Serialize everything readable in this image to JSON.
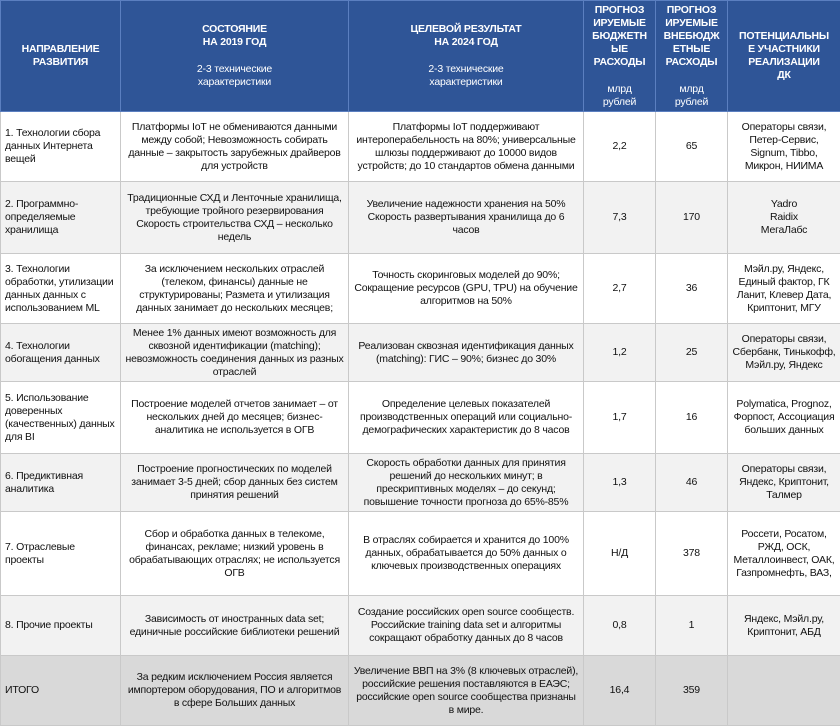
{
  "colors": {
    "header_bg": "#2f5597",
    "row_alt_bg": "#f2f2f2",
    "total_bg": "#d9d9d9"
  },
  "header": [
    {
      "title": "НАПРАВЛЕНИЕ\nРАЗВИТИЯ",
      "sub": ""
    },
    {
      "title": "СОСТОЯНИЕ\nНА 2019 ГОД",
      "sub": "2-3 технические\nхарактеристики"
    },
    {
      "title": "ЦЕЛЕВОЙ РЕЗУЛЬТАТ\nНА 2024 ГОД",
      "sub": "2-3 технические\nхарактеристики"
    },
    {
      "title": "ПРОГНОЗ\nИРУЕМЫЕ\nБЮДЖЕТН\nЫЕ\nРАСХОДЫ",
      "sub": "млрд\nрублей"
    },
    {
      "title": "ПРОГНОЗ\nИРУЕМЫЕ\nВНЕБЮДЖ\nЕТНЫЕ\nРАСХОДЫ",
      "sub": "млрд\nрублей"
    },
    {
      "title": "ПОТЕНЦИАЛЬНЫ\nЕ УЧАСТНИКИ\nРЕАЛИЗАЦИИ\nДК",
      "sub": ""
    }
  ],
  "rows": [
    {
      "direction": "1. Технологии сбора данных Интернета вещей",
      "state_2019": "Платформы IoT не обмениваются данными между собой; Невозможность собирать данные – закрытость зарубежных драйверов  для устройств",
      "target_2024": "Платформы IoT поддерживают интероперабельность на 80%; универсальные шлюзы поддерживают до 10000 видов устройств; до 10 стандартов обмена данными",
      "budget": "2,2",
      "extra_budget": "65",
      "participants": "Операторы связи, Петер-Сервис, Signum, Tibbo, Микрон, НИИМА"
    },
    {
      "direction": "2. Программно-определяемые хранилища",
      "state_2019": "Традиционные СХД и Ленточные хранилища, требующие тройного резервирования\nСкорость строительства СХД – несколько недель",
      "target_2024": "Увеличение надежности хранения на 50%\nСкорость развертывания хранилища до 6 часов",
      "budget": "7,3",
      "extra_budget": "170",
      "participants": "Yadro\nRaidix\nМегаЛабс"
    },
    {
      "direction": "3. Технологии обработки, утилизации данных данных с использованием ML",
      "state_2019": "За исключением нескольких отраслей (телеком, финансы) данные не структурированы; Размета и утилизация данных занимает до нескольких месяцев;",
      "target_2024": "Точность скоринговых моделей до 90%; Сокращение ресурсов (GPU, TPU) на обучение алгоритмов на 50%",
      "budget": "2,7",
      "extra_budget": "36",
      "participants": "Мэйл.ру, Яндекс, Единый фактор, ГК Ланит, Клевер Дата, Криптонит, МГУ"
    },
    {
      "direction": "4. Технологии обогащения данных",
      "state_2019": "Менее 1% данных имеют возможность для сквозной  идентификации (matching); невозможность соединения данных из разных отраслей",
      "target_2024": "Реализован сквозная идентификация данных (matching): ГИС – 90%; бизнес  до 30%",
      "budget": "1,2",
      "extra_budget": "25",
      "participants": "Операторы связи, Сбербанк, Тинькофф, Мэйл.ру, Яндекс"
    },
    {
      "direction": "5. Использование доверенных (качественных) данных для BI",
      "state_2019": "Построение моделей отчетов занимает – от нескольких дней до месяцев; бизнес-аналитика не используется в ОГВ",
      "target_2024": "Определение целевых показателей производственных операций или социально-демографических характеристик до 8 часов",
      "budget": "1,7",
      "extra_budget": "16",
      "participants": "Polymatica, Prognoz, Форпост, Ассоциация больших данных"
    },
    {
      "direction": "6. Предиктивная аналитика",
      "state_2019": "Построение прогностических по  моделей занимает 3-5 дней; сбор данных без систем принятия решений",
      "target_2024": "Скорость обработки данных для принятия решений до нескольких минут; в прескриптивных моделях – до секунд; повышение точности прогноза до 65%-85%",
      "budget": "1,3",
      "extra_budget": "46",
      "participants": "Операторы связи, Яндекс, Криптонит, Талмер"
    },
    {
      "direction": "7. Отраслевые проекты",
      "state_2019": "Сбор и обработка данных в телекоме, финансах, рекламе; низкий уровень в обрабатывающих отраслях; не используется ОГВ",
      "target_2024": "В отраслях собирается и хранится до 100% данных, обрабатывается до 50%  данных о ключевых производственных операциях",
      "budget": "Н/Д",
      "extra_budget": "378",
      "participants": "Россети, Росатом, РЖД, ОСК, Металлоинвест, ОАК, Газпромнефть, ВАЗ,"
    },
    {
      "direction": "8. Прочие проекты",
      "state_2019": "Зависимость от иностранных data set; единичные российские библиотеки решений",
      "target_2024": "Создание российских open source сообществ. Российские training data set  и алгоритмы  сокращают обработку данных до 8 часов",
      "budget": "0,8",
      "extra_budget": "1",
      "participants": "Яндекс, Мэйл.ру, Криптонит, АБД"
    },
    {
      "direction": "ИТОГО",
      "state_2019": "За редким исключением Россия является импортером оборудования, ПО и алгоритмов в сфере Больших данных",
      "target_2024": "Увеличение ВВП на 3% (8 ключевых отраслей),\nроссийские решения поставляются в ЕАЭС; российские open source сообщества признаны в мире.",
      "budget": "16,4",
      "extra_budget": "359",
      "participants": ""
    }
  ]
}
